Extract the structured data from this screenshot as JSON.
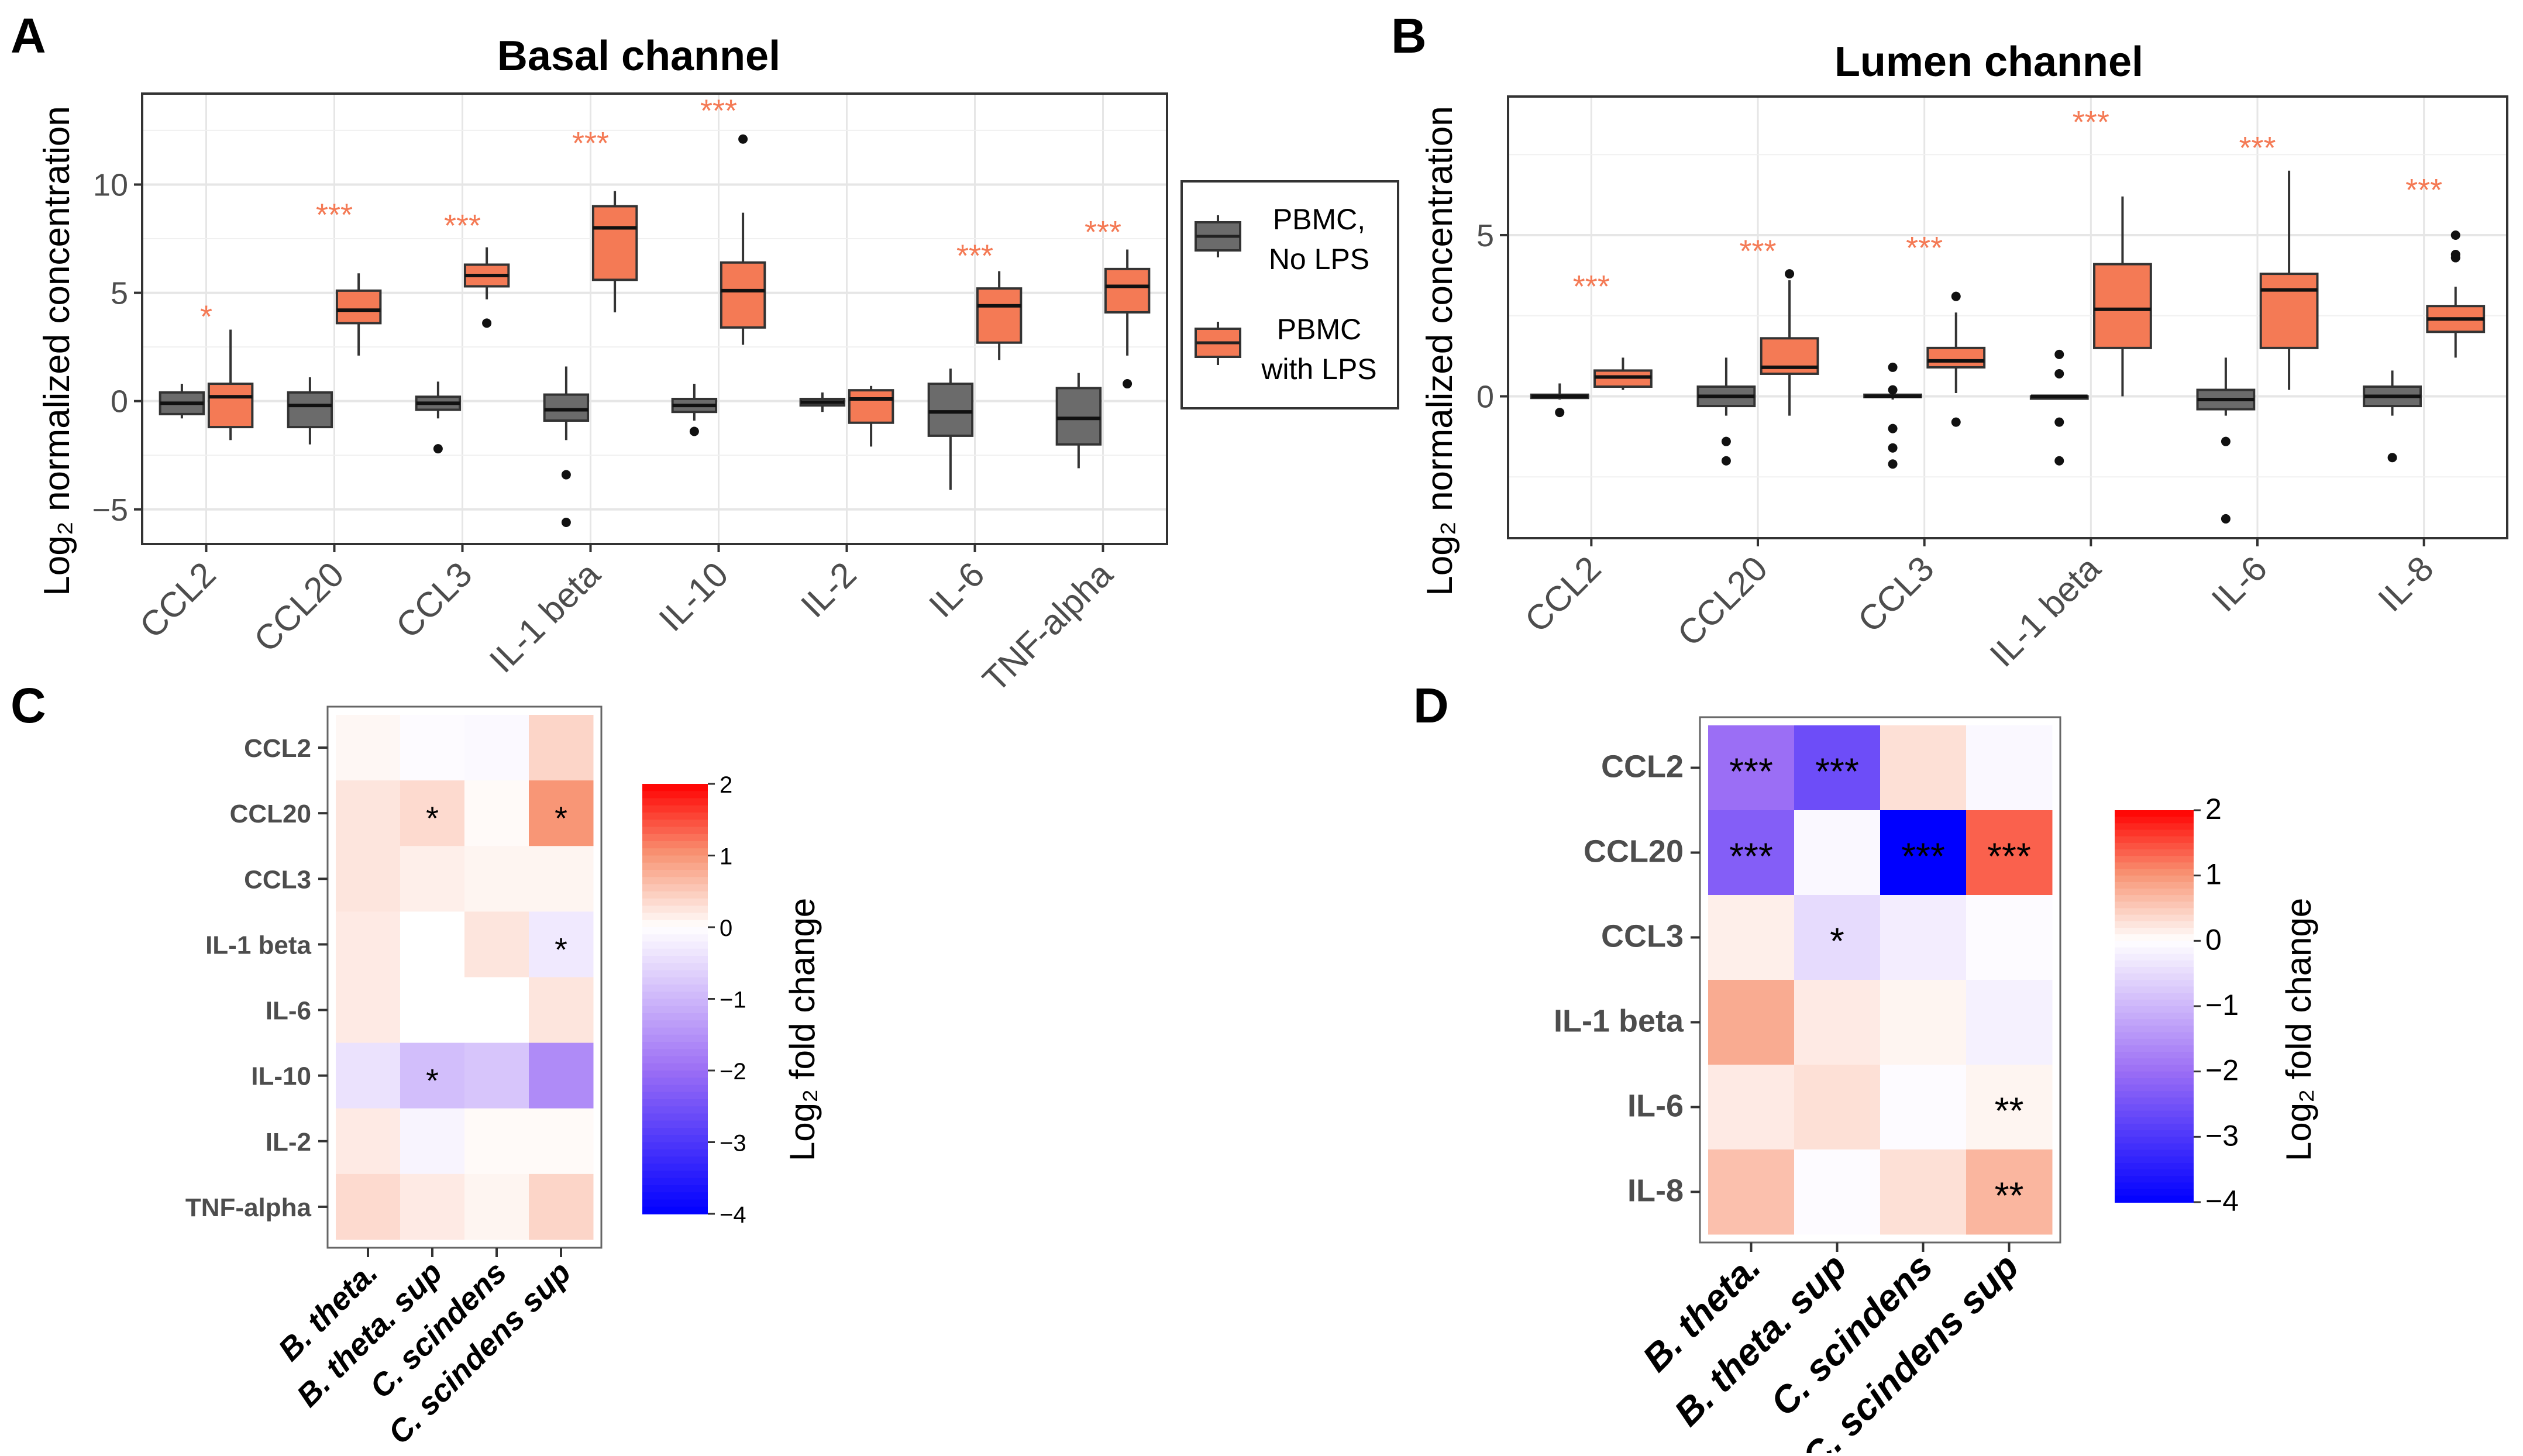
{
  "colors": {
    "no_lps": "#6b6b6b",
    "with_lps": "#f47a55",
    "sig": "#f47a55",
    "grid": "#e6e6e6",
    "panel_bg": "#ffffff",
    "neg": "#0000ff",
    "zero": "#ffffff",
    "pos": "#ff0000"
  },
  "panel_letters": {
    "a": "A",
    "b": "B",
    "c": "C",
    "d": "D"
  },
  "legend": {
    "no_lps": [
      "PBMC,",
      "No LPS"
    ],
    "with_lps": [
      "PBMC",
      "with LPS"
    ]
  },
  "chart_data": [
    {
      "id": "A",
      "type": "boxplot",
      "title": "Basal channel",
      "ylabel": "Log₂ normalized concentration",
      "ylim": [
        -6.6,
        14.2
      ],
      "yticks": [
        -5,
        0,
        5,
        10
      ],
      "ytick_labels": [
        "−5",
        "0",
        "5",
        "10"
      ],
      "categories": [
        "CCL2",
        "CCL20",
        "CCL3",
        "IL-1 beta",
        "IL-10",
        "IL-2",
        "IL-6",
        "TNF-alpha"
      ],
      "series": [
        {
          "name": "PBMC, No LPS",
          "boxes": [
            {
              "min": -0.8,
              "q1": -0.6,
              "median": -0.1,
              "q3": 0.4,
              "max": 0.8,
              "outliers": []
            },
            {
              "min": -2.0,
              "q1": -1.2,
              "median": -0.2,
              "q3": 0.4,
              "max": 1.1,
              "outliers": []
            },
            {
              "min": -0.8,
              "q1": -0.4,
              "median": -0.1,
              "q3": 0.2,
              "max": 0.9,
              "outliers": [
                -2.2
              ]
            },
            {
              "min": -1.8,
              "q1": -0.9,
              "median": -0.4,
              "q3": 0.3,
              "max": 1.6,
              "outliers": [
                -3.4,
                -5.6
              ]
            },
            {
              "min": -0.9,
              "q1": -0.5,
              "median": -0.2,
              "q3": 0.1,
              "max": 0.8,
              "outliers": [
                -1.4
              ]
            },
            {
              "min": -0.5,
              "q1": -0.2,
              "median": -0.05,
              "q3": 0.1,
              "max": 0.4,
              "outliers": []
            },
            {
              "min": -4.1,
              "q1": -1.6,
              "median": -0.5,
              "q3": 0.8,
              "max": 1.5,
              "outliers": []
            },
            {
              "min": -3.1,
              "q1": -2.0,
              "median": -0.8,
              "q3": 0.6,
              "max": 1.3,
              "outliers": []
            }
          ]
        },
        {
          "name": "PBMC with LPS",
          "boxes": [
            {
              "min": -1.8,
              "q1": -1.2,
              "median": 0.2,
              "q3": 0.8,
              "max": 3.3,
              "outliers": []
            },
            {
              "min": 2.1,
              "q1": 3.6,
              "median": 4.2,
              "q3": 5.1,
              "max": 5.9,
              "outliers": []
            },
            {
              "min": 4.7,
              "q1": 5.3,
              "median": 5.8,
              "q3": 6.3,
              "max": 7.1,
              "outliers": [
                3.6
              ]
            },
            {
              "min": 4.1,
              "q1": 5.6,
              "median": 8.0,
              "q3": 9.0,
              "max": 9.7,
              "outliers": []
            },
            {
              "min": 2.6,
              "q1": 3.4,
              "median": 5.1,
              "q3": 6.4,
              "max": 8.7,
              "outliers": [
                12.1
              ]
            },
            {
              "min": -2.1,
              "q1": -1.0,
              "median": 0.1,
              "q3": 0.5,
              "max": 0.7,
              "outliers": []
            },
            {
              "min": 1.9,
              "q1": 2.7,
              "median": 4.4,
              "q3": 5.2,
              "max": 6.0,
              "outliers": []
            },
            {
              "min": 2.1,
              "q1": 4.1,
              "median": 5.3,
              "q3": 6.1,
              "max": 7.0,
              "outliers": [
                0.8
              ]
            }
          ]
        }
      ],
      "significance": [
        "*",
        "***",
        "***",
        "***",
        "***",
        "",
        "***",
        "***"
      ],
      "significance_y": [
        3.9,
        8.6,
        8.1,
        11.9,
        13.4,
        null,
        6.7,
        7.8
      ]
    },
    {
      "id": "B",
      "type": "boxplot",
      "title": "Lumen channel",
      "ylabel": "Log₂ normalized concentration",
      "ylim": [
        -4.4,
        9.3
      ],
      "yticks": [
        0,
        5
      ],
      "ytick_labels": [
        "0",
        "5"
      ],
      "categories": [
        "CCL2",
        "CCL20",
        "CCL3",
        "IL-1 beta",
        "IL-6",
        "IL-8"
      ],
      "series": [
        {
          "name": "PBMC, No LPS",
          "boxes": [
            {
              "min": -0.1,
              "q1": -0.05,
              "median": 0.0,
              "q3": 0.05,
              "max": 0.4,
              "outliers": [
                -0.5
              ]
            },
            {
              "min": -0.6,
              "q1": -0.3,
              "median": 0.0,
              "q3": 0.3,
              "max": 1.2,
              "outliers": [
                -1.4,
                -2.0
              ]
            },
            {
              "min": -0.1,
              "q1": 0.0,
              "median": 0.0,
              "q3": 0.05,
              "max": 0.2,
              "outliers": [
                0.9,
                0.2,
                -1.0,
                -1.6,
                -2.1
              ]
            },
            {
              "min": 0.0,
              "q1": 0.0,
              "median": 0.0,
              "q3": 0.0,
              "max": 0.0,
              "outliers": [
                1.3,
                0.7,
                -0.8,
                -2.0
              ]
            },
            {
              "min": -0.6,
              "q1": -0.4,
              "median": -0.1,
              "q3": 0.2,
              "max": 1.2,
              "outliers": [
                -1.4,
                -3.8
              ]
            },
            {
              "min": -0.6,
              "q1": -0.3,
              "median": 0.0,
              "q3": 0.3,
              "max": 0.8,
              "outliers": [
                -1.9
              ]
            }
          ]
        },
        {
          "name": "PBMC with LPS",
          "boxes": [
            {
              "min": 0.2,
              "q1": 0.3,
              "median": 0.6,
              "q3": 0.8,
              "max": 1.2,
              "outliers": []
            },
            {
              "min": -0.6,
              "q1": 0.7,
              "median": 0.9,
              "q3": 1.8,
              "max": 3.6,
              "outliers": [
                3.8
              ]
            },
            {
              "min": 0.1,
              "q1": 0.9,
              "median": 1.1,
              "q3": 1.5,
              "max": 2.6,
              "outliers": [
                3.1,
                -0.8
              ]
            },
            {
              "min": 0.0,
              "q1": 1.5,
              "median": 2.7,
              "q3": 4.1,
              "max": 6.2,
              "outliers": []
            },
            {
              "min": 0.2,
              "q1": 1.5,
              "median": 3.3,
              "q3": 3.8,
              "max": 7.0,
              "outliers": []
            },
            {
              "min": 1.2,
              "q1": 2.0,
              "median": 2.4,
              "q3": 2.8,
              "max": 3.4,
              "outliers": [
                5.0,
                4.4,
                4.3
              ]
            }
          ]
        }
      ],
      "significance": [
        "***",
        "***",
        "***",
        "***",
        "***",
        "***"
      ],
      "significance_y": [
        3.4,
        4.5,
        4.6,
        8.5,
        7.7,
        6.4
      ]
    },
    {
      "id": "C",
      "type": "heatmap",
      "colorbar_label": "Log₂ fold change",
      "color_range": [
        -4,
        2
      ],
      "colorbar_ticks": [
        2,
        1,
        0,
        -1,
        -2,
        -3,
        -4
      ],
      "colorbar_tick_labels": [
        "2",
        "1",
        "0",
        "−1",
        "−2",
        "−3",
        "−4"
      ],
      "rows": [
        "CCL2",
        "CCL20",
        "CCL3",
        "IL-1 beta",
        "IL-6",
        "IL-10",
        "IL-2",
        "TNF-alpha"
      ],
      "columns": [
        "B. theta.",
        "B. theta. sup",
        "C. scindens",
        "C. scindens sup"
      ],
      "values": [
        [
          0.08,
          -0.05,
          -0.08,
          0.4
        ],
        [
          0.25,
          0.35,
          0.05,
          1.0
        ],
        [
          0.25,
          0.15,
          0.1,
          0.1
        ],
        [
          0.2,
          0.0,
          0.25,
          -0.3
        ],
        [
          0.2,
          0.0,
          0.0,
          0.25
        ],
        [
          -0.4,
          -0.9,
          -0.8,
          -1.6
        ],
        [
          0.2,
          -0.15,
          0.05,
          0.05
        ],
        [
          0.35,
          0.2,
          0.1,
          0.4
        ]
      ],
      "stars": [
        [
          "",
          "",
          "",
          ""
        ],
        [
          "",
          "*",
          "",
          "*"
        ],
        [
          "",
          "",
          "",
          ""
        ],
        [
          "",
          "",
          "",
          "*"
        ],
        [
          "",
          "",
          "",
          ""
        ],
        [
          "",
          "*",
          "",
          ""
        ],
        [
          "",
          "",
          "",
          ""
        ],
        [
          "",
          "",
          "",
          ""
        ]
      ]
    },
    {
      "id": "D",
      "type": "heatmap",
      "colorbar_label": "Log₂ fold change",
      "color_range": [
        -4,
        2
      ],
      "colorbar_ticks": [
        2,
        1,
        0,
        -1,
        -2,
        -3,
        -4
      ],
      "colorbar_tick_labels": [
        "2",
        "1",
        "0",
        "−1",
        "−2",
        "−3",
        "−4"
      ],
      "rows": [
        "CCL2",
        "CCL20",
        "CCL3",
        "IL-1 beta",
        "IL-6",
        "IL-8"
      ],
      "columns": [
        "B. theta.",
        "B. theta. sup",
        "C. scindens",
        "C. scindens sup"
      ],
      "values": [
        [
          -2.0,
          -2.6,
          0.3,
          -0.1
        ],
        [
          -2.3,
          -0.1,
          -4.0,
          1.35
        ],
        [
          0.15,
          -0.5,
          -0.25,
          -0.05
        ],
        [
          0.8,
          0.2,
          0.1,
          -0.2
        ],
        [
          0.2,
          0.3,
          -0.05,
          0.1
        ],
        [
          0.6,
          -0.05,
          0.3,
          0.7
        ]
      ],
      "stars": [
        [
          "***",
          "***",
          "",
          ""
        ],
        [
          "***",
          "",
          "***",
          "***"
        ],
        [
          "",
          "*",
          "",
          ""
        ],
        [
          "",
          "",
          "",
          ""
        ],
        [
          "",
          "",
          "",
          "**"
        ],
        [
          "",
          "",
          "",
          "**"
        ]
      ]
    }
  ]
}
